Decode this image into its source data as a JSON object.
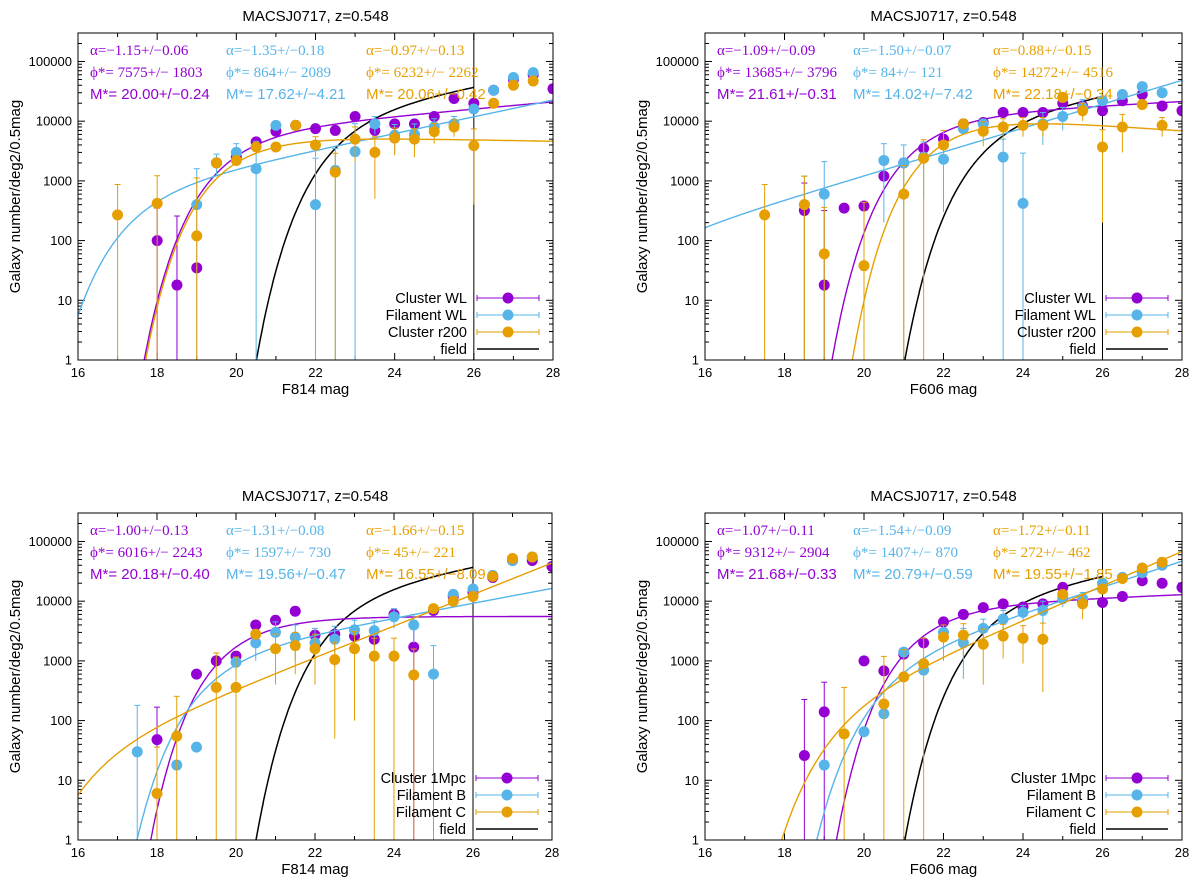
{
  "colors": {
    "purple": "#9400d3",
    "blue": "#56b4e9",
    "orange": "#e69f00",
    "black": "#000000"
  },
  "chart_data": [
    {
      "type": "scatter",
      "title": "MACSJ0717, z=0.548",
      "xlabel": "F814 mag",
      "ylabel": "Galaxy number/deg2/0.5mag",
      "xlim": [
        16,
        28
      ],
      "ylim": [
        1,
        300000
      ],
      "yscale": "log",
      "xticks": [
        "16",
        "18",
        "20",
        "22",
        "24",
        "26",
        "28"
      ],
      "yticks": [
        "1",
        "10",
        "100",
        "1000",
        "10000",
        "100000"
      ],
      "limit_mag": 26,
      "params": [
        [
          "α=−1.15+/−0.06",
          "ϕ*=  7575+/− 1803",
          "M*= 20.00+/−0.24"
        ],
        [
          "α=−1.35+/−0.18",
          "ϕ*=   864+/− 2089",
          "M*= 17.62+/−4.21"
        ],
        [
          "α=−0.97+/−0.13",
          "ϕ*=  6232+/− 2262",
          "M*= 20.06+/−0.42"
        ]
      ],
      "legend": [
        "Cluster WL",
        "Filament WL",
        "Cluster r200",
        "field"
      ],
      "field": {
        "M": 22.9,
        "alpha": -1.3,
        "phi": 18000
      },
      "series": [
        {
          "name": "Cluster WL",
          "color": "#9400d3",
          "fit": {
            "M": 20.0,
            "alpha": -1.15,
            "phi": 7575
          },
          "x": [
            18,
            18.5,
            19,
            19.5,
            20,
            20.5,
            21,
            21.5,
            22,
            22.5,
            23,
            23.5,
            24,
            24.5,
            25,
            25.5,
            26,
            26.5,
            27,
            27.5,
            28
          ],
          "y": [
            100,
            18,
            35,
            2000,
            2500,
            4500,
            6800,
            8500,
            7500,
            7000,
            12000,
            7000,
            9000,
            9000,
            12000,
            24000,
            20000,
            33000,
            50000,
            60000,
            35000
          ],
          "err": [
            250,
            240,
            0,
            0,
            0,
            0,
            0,
            0,
            0,
            0,
            0,
            0,
            0,
            0,
            0,
            0,
            0,
            0,
            0,
            0,
            0
          ]
        },
        {
          "name": "Filament WL",
          "color": "#56b4e9",
          "fit": {
            "M": 17.62,
            "alpha": -1.35,
            "phi": 864
          },
          "x": [
            19,
            19.5,
            20,
            20.5,
            21,
            21.5,
            22,
            22.5,
            23,
            23.5,
            24,
            24.5,
            25,
            25.5,
            26,
            26.5,
            27,
            27.5
          ],
          "y": [
            400,
            2000,
            3000,
            1600,
            8500,
            8500,
            400,
            1500,
            3100,
            9000,
            5800,
            6000,
            8000,
            9000,
            16000,
            33000,
            54000,
            65000
          ],
          "err": [
            1200,
            800,
            1200,
            3000,
            0,
            0,
            2000,
            2000,
            6000,
            3000,
            3000,
            3000,
            3000,
            3000,
            0,
            0,
            0,
            0
          ]
        },
        {
          "name": "Cluster r200",
          "color": "#e69f00",
          "fit": {
            "M": 20.06,
            "alpha": -0.97,
            "phi": 6232
          },
          "x": [
            17,
            18,
            19,
            19.5,
            20,
            20.5,
            21,
            21.5,
            22,
            22.5,
            23,
            23.5,
            24,
            24.5,
            25,
            25.5,
            26,
            26.5,
            27,
            27.5
          ],
          "y": [
            270,
            420,
            120,
            2000,
            2200,
            3700,
            3700,
            8500,
            4000,
            1400,
            5000,
            3000,
            5200,
            5000,
            6700,
            8000,
            3900,
            20000,
            40000,
            47000
          ],
          "err": [
            600,
            800,
            1000,
            0,
            0,
            0,
            0,
            0,
            1500,
            1500,
            3000,
            2500,
            2500,
            2500,
            2500,
            2500,
            3500,
            0,
            0,
            0
          ]
        }
      ]
    },
    {
      "type": "scatter",
      "title": "MACSJ0717, z=0.548",
      "xlabel": "F606 mag",
      "ylabel": "Galaxy number/deg2/0.5mag",
      "xlim": [
        16,
        28
      ],
      "ylim": [
        1,
        300000
      ],
      "yscale": "log",
      "xticks": [
        "16",
        "18",
        "20",
        "22",
        "24",
        "26",
        "28"
      ],
      "yticks": [
        "1",
        "10",
        "100",
        "1000",
        "10000",
        "100000"
      ],
      "limit_mag": 26,
      "params": [
        [
          "α=−1.09+/−0.09",
          "ϕ*= 13685+/− 3796",
          "M*= 21.61+/−0.31"
        ],
        [
          "α=−1.50+/−0.07",
          "ϕ*=    84+/−  121",
          "M*= 14.02+/−7.42"
        ],
        [
          "α=−0.88+/−0.15",
          "ϕ*= 14272+/− 4516",
          "M*= 22.18+/−0.34"
        ]
      ],
      "legend": [
        "Cluster WL",
        "Filament WL",
        "Cluster r200",
        "field"
      ],
      "field": {
        "M": 23.4,
        "alpha": -1.3,
        "phi": 15000
      },
      "series": [
        {
          "name": "Cluster WL",
          "color": "#9400d3",
          "fit": {
            "M": 21.61,
            "alpha": -1.09,
            "phi": 13685
          },
          "x": [
            18.5,
            19,
            19.5,
            20,
            20.5,
            21,
            21.5,
            22,
            22.5,
            23,
            23.5,
            24,
            24.5,
            25,
            25.5,
            26,
            26.5,
            27,
            27.5,
            28
          ],
          "y": [
            320,
            18,
            350,
            380,
            1200,
            2000,
            3500,
            5000,
            9000,
            9500,
            14000,
            14000,
            14000,
            20000,
            18000,
            15000,
            22000,
            28000,
            18000,
            15000
          ],
          "err": [
            600,
            300,
            0,
            0,
            0,
            0,
            0,
            0,
            0,
            0,
            0,
            0,
            0,
            0,
            0,
            0,
            0,
            0,
            0,
            0
          ]
        },
        {
          "name": "Filament WL",
          "color": "#56b4e9",
          "fit": {
            "M": 14.02,
            "alpha": -1.5,
            "phi": 84
          },
          "x": [
            18.5,
            19,
            20.5,
            21,
            21.5,
            22,
            22.5,
            23,
            23.5,
            24,
            24.5,
            25,
            25.5,
            26,
            26.5,
            27,
            27.5
          ],
          "y": [
            400,
            600,
            2200,
            2000,
            2500,
            2300,
            7500,
            9000,
            2500,
            420,
            9000,
            12000,
            17000,
            22000,
            28000,
            38000,
            30000
          ],
          "err": [
            800,
            1500,
            2000,
            2000,
            2000,
            2000,
            0,
            0,
            2500,
            2500,
            5000,
            5000,
            6000,
            0,
            0,
            0,
            0
          ]
        },
        {
          "name": "Cluster r200",
          "color": "#e69f00",
          "fit": {
            "M": 22.18,
            "alpha": -0.88,
            "phi": 14272
          },
          "x": [
            17.5,
            18.5,
            19,
            20,
            21,
            21.5,
            22,
            22.5,
            23,
            23.5,
            24,
            24.5,
            25,
            25.5,
            26,
            26.5,
            27,
            27.5
          ],
          "y": [
            270,
            400,
            60,
            38,
            600,
            2400,
            4000,
            9000,
            6800,
            8000,
            8500,
            8500,
            25000,
            15000,
            3700,
            8000,
            19000,
            8500
          ],
          "err": [
            600,
            800,
            300,
            400,
            1200,
            2500,
            3000,
            0,
            3000,
            3000,
            3000,
            3000,
            0,
            5000,
            3500,
            5000,
            0,
            3000
          ]
        }
      ]
    },
    {
      "type": "scatter",
      "title": "MACSJ0717, z=0.548",
      "xlabel": "F814 mag",
      "ylabel": "Galaxy number/deg2/0.5mag",
      "xlim": [
        16,
        28
      ],
      "ylim": [
        1,
        300000
      ],
      "yscale": "log",
      "xticks": [
        "16",
        "18",
        "20",
        "22",
        "24",
        "26",
        "28"
      ],
      "yticks": [
        "1",
        "10",
        "100",
        "1000",
        "10000",
        "100000"
      ],
      "limit_mag": 26,
      "params": [
        [
          "α=−1.00+/−0.13",
          "ϕ*=  6016+/− 2243",
          "M*= 20.18+/−0.40"
        ],
        [
          "α=−1.31+/−0.08",
          "ϕ*=  1597+/−  730",
          "M*= 19.56+/−0.47"
        ],
        [
          "α=−1.66+/−0.15",
          "ϕ*=    45+/−  221",
          "M*= 16.55+/−8.09"
        ]
      ],
      "legend": [
        "Cluster 1Mpc",
        "Filament B",
        "Filament C",
        "field"
      ],
      "field": {
        "M": 22.9,
        "alpha": -1.3,
        "phi": 18000
      },
      "series": [
        {
          "name": "Cluster 1Mpc",
          "color": "#9400d3",
          "fit": {
            "M": 20.18,
            "alpha": -1.0,
            "phi": 6016
          },
          "x": [
            18,
            19,
            19.5,
            20,
            20.5,
            21,
            21.5,
            22,
            22.5,
            23,
            23.5,
            24,
            24.5,
            25,
            25.5,
            26,
            26.5,
            27,
            27.5,
            28
          ],
          "y": [
            48,
            600,
            1000,
            1200,
            4000,
            4800,
            6800,
            2700,
            2800,
            2600,
            2300,
            6000,
            1700,
            7000,
            12000,
            14000,
            25000,
            48000,
            48000,
            38000
          ],
          "err": [
            120,
            0,
            0,
            0,
            0,
            0,
            0,
            0,
            0,
            0,
            0,
            0,
            3000,
            0,
            0,
            0,
            0,
            0,
            0,
            0
          ]
        },
        {
          "name": "Filament B",
          "color": "#56b4e9",
          "fit": {
            "M": 19.56,
            "alpha": -1.31,
            "phi": 1597
          },
          "x": [
            17.5,
            18.5,
            19,
            20,
            20.5,
            21,
            21.5,
            22,
            22.5,
            23,
            23.5,
            24,
            24.5,
            25,
            25.5,
            26,
            26.5,
            27,
            27.5
          ],
          "y": [
            30,
            18,
            36,
            950,
            2000,
            3000,
            2500,
            2000,
            2300,
            3300,
            3200,
            5500,
            4000,
            600,
            13000,
            16000,
            27000,
            48000,
            55000
          ],
          "err": [
            150,
            0,
            0,
            0,
            1000,
            1500,
            1500,
            1500,
            1500,
            1500,
            1500,
            2000,
            2000,
            1200,
            0,
            0,
            0,
            0,
            0
          ]
        },
        {
          "name": "Filament C",
          "color": "#e69f00",
          "fit": {
            "M": 16.55,
            "alpha": -1.66,
            "phi": 45
          },
          "x": [
            18,
            18.5,
            19.5,
            20,
            20.5,
            21,
            21.5,
            22,
            22.5,
            23,
            23.5,
            24,
            24.5,
            25,
            25.5,
            26,
            26.5,
            27,
            27.5
          ],
          "y": [
            6,
            55,
            360,
            360,
            2800,
            1600,
            1800,
            1600,
            1050,
            1600,
            1200,
            1200,
            580,
            7500,
            10000,
            12000,
            26000,
            52000,
            55000
          ],
          "err": [
            30,
            200,
            1000,
            800,
            0,
            1200,
            1200,
            1200,
            1000,
            1500,
            1200,
            1200,
            1000,
            0,
            0,
            0,
            0,
            0,
            0
          ]
        }
      ]
    },
    {
      "type": "scatter",
      "title": "MACSJ0717, z=0.548",
      "xlabel": "F606 mag",
      "ylabel": "Galaxy number/deg2/0.5mag",
      "xlim": [
        16,
        28
      ],
      "ylim": [
        1,
        300000
      ],
      "yscale": "log",
      "xticks": [
        "16",
        "18",
        "20",
        "22",
        "24",
        "26",
        "28"
      ],
      "yticks": [
        "1",
        "10",
        "100",
        "1000",
        "10000",
        "100000"
      ],
      "limit_mag": 26,
      "params": [
        [
          "α=−1.07+/−0.11",
          "ϕ*=  9312+/− 2904",
          "M*= 21.68+/−0.33"
        ],
        [
          "α=−1.54+/−0.09",
          "ϕ*=  1407+/−  870",
          "M*= 20.79+/−0.59"
        ],
        [
          "α=−1.72+/−0.11",
          "ϕ*=   272+/−  462",
          "M*= 19.55+/−1.85"
        ]
      ],
      "legend": [
        "Cluster 1Mpc",
        "Filament B",
        "Filament C",
        "field"
      ],
      "field": {
        "M": 23.4,
        "alpha": -1.3,
        "phi": 15000
      },
      "series": [
        {
          "name": "Cluster 1Mpc",
          "color": "#9400d3",
          "fit": {
            "M": 21.68,
            "alpha": -1.07,
            "phi": 9312
          },
          "x": [
            18.5,
            19,
            20,
            20.5,
            21,
            21.5,
            22,
            22.5,
            23,
            23.5,
            24,
            24.5,
            25,
            25.5,
            26,
            26.5,
            27,
            27.5,
            28
          ],
          "y": [
            26,
            140,
            1000,
            680,
            1300,
            2000,
            4500,
            6000,
            7800,
            9000,
            8000,
            9000,
            17000,
            10000,
            9500,
            12000,
            22000,
            20000,
            17000
          ],
          "err": [
            200,
            300,
            0,
            0,
            0,
            0,
            0,
            0,
            0,
            0,
            0,
            0,
            0,
            0,
            0,
            0,
            0,
            0,
            0
          ]
        },
        {
          "name": "Filament B",
          "color": "#56b4e9",
          "fit": {
            "M": 20.79,
            "alpha": -1.54,
            "phi": 1407
          },
          "x": [
            19,
            20,
            20.5,
            21,
            21.5,
            22,
            22.5,
            23,
            23.5,
            24,
            24.5,
            25,
            25.5,
            26,
            26.5,
            27,
            27.5
          ],
          "y": [
            18,
            65,
            130,
            1400,
            700,
            3000,
            2000,
            3500,
            5000,
            6500,
            7000,
            11000,
            11000,
            20000,
            25000,
            30000,
            40000
          ],
          "err": [
            0,
            0,
            0,
            0,
            0,
            0,
            1500,
            1500,
            2000,
            2000,
            3000,
            3000,
            3000,
            0,
            0,
            0,
            0
          ]
        },
        {
          "name": "Filament C",
          "color": "#e69f00",
          "fit": {
            "M": 19.55,
            "alpha": -1.72,
            "phi": 272
          },
          "x": [
            19.5,
            20.5,
            21,
            21.5,
            22,
            22.5,
            23,
            23.5,
            24,
            24.5,
            25,
            25.5,
            26,
            26.5,
            27,
            27.5
          ],
          "y": [
            60,
            190,
            540,
            900,
            2500,
            2700,
            1900,
            2600,
            2400,
            2300,
            13000,
            9000,
            16000,
            24000,
            36000,
            45000
          ],
          "err": [
            300,
            1000,
            1000,
            1500,
            1500,
            1500,
            1500,
            1500,
            1500,
            2000,
            0,
            4000,
            0,
            0,
            0,
            0
          ]
        }
      ]
    }
  ]
}
